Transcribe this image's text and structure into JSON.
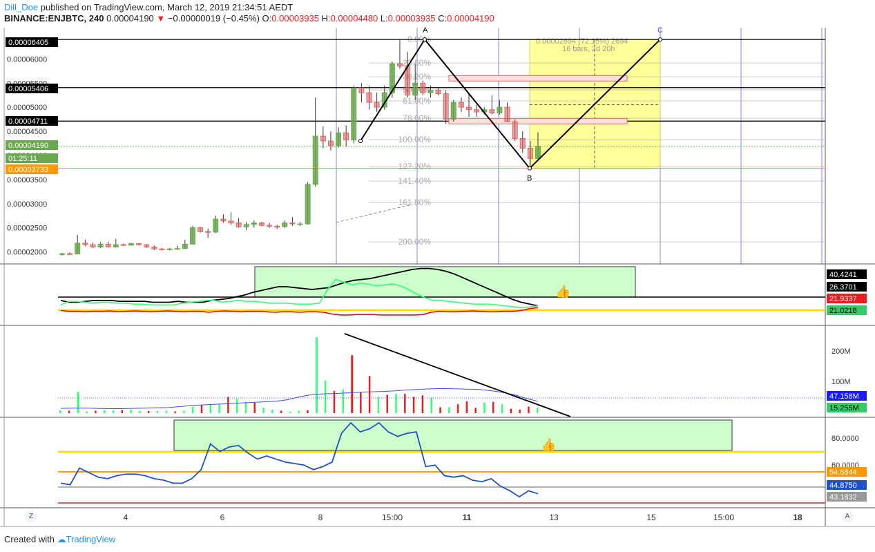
{
  "header": {
    "author": "Dill_Doe",
    "published": "published on TradingView.com, March 12, 2019 21:34:51 AEDT",
    "symbol": "BINANCE:ENJBTC, 240",
    "last": "0.00004190",
    "change": "−0.00000019 (−0.45%)",
    "o_label": "O:",
    "o_value": "0.00003935",
    "h_label": "H:",
    "h_value": "0.00004480",
    "l_label": "L:",
    "l_value": "0.00003935",
    "c_label": "C:",
    "c_value": "0.00004190"
  },
  "footer": {
    "created_with": "Created with",
    "brand": "TradingView"
  },
  "buttons": {
    "zoom": "Z",
    "auto": "A"
  },
  "colors": {
    "up": "#6aa84f",
    "down": "#e06666",
    "grid_v": "#3f51e5",
    "fib": "#9e9e9e",
    "zone": "#ffff99",
    "green_box": "#ccffcc",
    "yellow_line": "#ffd600",
    "orange_line": "#ff9800"
  },
  "chart_data": [
    {
      "type": "candlestick",
      "title": "BINANCE:ENJBTC, 240",
      "ylim": [
        1.75e-05,
        6.65e-05
      ],
      "x_ticks": [
        "4",
        "6",
        "8",
        "15:00",
        "11",
        "13",
        "15",
        "15:00",
        "18"
      ],
      "y_ticks": [
        "0.00002000",
        "0.00002500",
        "0.00003000",
        "0.00003500",
        "0.00004000",
        "0.00004500",
        "0.00005000",
        "0.00005500",
        "0.00006000"
      ],
      "price_labels": [
        {
          "text": "0.00006405",
          "style": "black"
        },
        {
          "text": "0.00005406",
          "style": "black"
        },
        {
          "text": "0.00004711",
          "style": "black"
        },
        {
          "text": "0.00004190",
          "style": "green"
        },
        {
          "text": "01:25:11",
          "style": "green"
        },
        {
          "text": "0.00003733",
          "style": "orange"
        }
      ],
      "fib_levels": [
        "0.00%",
        "23.60%",
        "38.20%",
        "50.00%",
        "61.80%",
        "78.60%",
        "100.00%",
        "127.20%",
        "141.40%",
        "161.80%",
        "200.00%"
      ],
      "measure_text": [
        "0.00002694 (72.15%) 2694",
        "16 bars, 2d 20h"
      ],
      "pattern_points": [
        "A",
        "B",
        "C"
      ],
      "candles": [
        {
          "o": 1.95e-05,
          "h": 1.98e-05,
          "l": 1.92e-05,
          "c": 1.96e-05
        },
        {
          "o": 1.96e-05,
          "h": 1.99e-05,
          "l": 1.94e-05,
          "c": 1.955e-05
        },
        {
          "o": 1.955e-05,
          "h": 2.35e-05,
          "l": 1.95e-05,
          "c": 2.18e-05
        },
        {
          "o": 2.18e-05,
          "h": 2.25e-05,
          "l": 2.12e-05,
          "c": 2.15e-05
        },
        {
          "o": 2.15e-05,
          "h": 2.19e-05,
          "l": 2.08e-05,
          "c": 2.1e-05
        },
        {
          "o": 2.1e-05,
          "h": 2.2e-05,
          "l": 2.08e-05,
          "c": 2.16e-05
        },
        {
          "o": 2.16e-05,
          "h": 2.21e-05,
          "l": 2.09e-05,
          "c": 2.1e-05
        },
        {
          "o": 2.1e-05,
          "h": 2.27e-05,
          "l": 2.09e-05,
          "c": 2.15e-05
        },
        {
          "o": 2.15e-05,
          "h": 2.17e-05,
          "l": 2.12e-05,
          "c": 2.14e-05
        },
        {
          "o": 2.14e-05,
          "h": 2.19e-05,
          "l": 2.13e-05,
          "c": 2.17e-05
        },
        {
          "o": 2.17e-05,
          "h": 2.18e-05,
          "l": 2.13e-05,
          "c": 2.15e-05
        },
        {
          "o": 2.15e-05,
          "h": 2.16e-05,
          "l": 2.08e-05,
          "c": 2.1e-05
        },
        {
          "o": 2.1e-05,
          "h": 2.13e-05,
          "l": 2.04e-05,
          "c": 2.06e-05
        },
        {
          "o": 2.06e-05,
          "h": 2.08e-05,
          "l": 2.03e-05,
          "c": 2.05e-05
        },
        {
          "o": 2.05e-05,
          "h": 2.08e-05,
          "l": 2.03e-05,
          "c": 2.06e-05
        },
        {
          "o": 2.06e-05,
          "h": 2.13e-05,
          "l": 2.04e-05,
          "c": 2.07e-05
        },
        {
          "o": 2.07e-05,
          "h": 2.25e-05,
          "l": 2.06e-05,
          "c": 2.16e-05
        },
        {
          "o": 2.16e-05,
          "h": 2.54e-05,
          "l": 2.15e-05,
          "c": 2.5e-05
        },
        {
          "o": 2.5e-05,
          "h": 2.52e-05,
          "l": 2.4e-05,
          "c": 2.42e-05
        },
        {
          "o": 2.42e-05,
          "h": 2.48e-05,
          "l": 2.29e-05,
          "c": 2.41e-05
        },
        {
          "o": 2.41e-05,
          "h": 2.75e-05,
          "l": 2.39e-05,
          "c": 2.68e-05
        },
        {
          "o": 2.68e-05,
          "h": 2.78e-05,
          "l": 2.6e-05,
          "c": 2.64e-05
        },
        {
          "o": 2.64e-05,
          "h": 2.82e-05,
          "l": 2.56e-05,
          "c": 2.6e-05
        },
        {
          "o": 2.6e-05,
          "h": 2.7e-05,
          "l": 2.5e-05,
          "c": 2.52e-05
        },
        {
          "o": 2.52e-05,
          "h": 2.62e-05,
          "l": 2.45e-05,
          "c": 2.57e-05
        },
        {
          "o": 2.57e-05,
          "h": 2.65e-05,
          "l": 2.5e-05,
          "c": 2.6e-05
        },
        {
          "o": 2.6e-05,
          "h": 2.62e-05,
          "l": 2.53e-05,
          "c": 2.55e-05
        },
        {
          "o": 2.55e-05,
          "h": 2.6e-05,
          "l": 2.5e-05,
          "c": 2.53e-05
        },
        {
          "o": 2.53e-05,
          "h": 2.56e-05,
          "l": 2.47e-05,
          "c": 2.52e-05
        },
        {
          "o": 2.52e-05,
          "h": 2.65e-05,
          "l": 2.5e-05,
          "c": 2.6e-05
        },
        {
          "o": 2.6e-05,
          "h": 2.72e-05,
          "l": 2.54e-05,
          "c": 2.58e-05
        },
        {
          "o": 2.58e-05,
          "h": 2.62e-05,
          "l": 2.54e-05,
          "c": 2.58e-05
        },
        {
          "o": 2.58e-05,
          "h": 3.45e-05,
          "l": 2.56e-05,
          "c": 3.4e-05
        },
        {
          "o": 3.4e-05,
          "h": 5.2e-05,
          "l": 3.35e-05,
          "c": 4.4e-05
        },
        {
          "o": 4.4e-05,
          "h": 4.6e-05,
          "l": 4.15e-05,
          "c": 4.3e-05
        },
        {
          "o": 4.3e-05,
          "h": 4.5e-05,
          "l": 4.1e-05,
          "c": 4.2e-05
        },
        {
          "o": 4.2e-05,
          "h": 4.58e-05,
          "l": 4.16e-05,
          "c": 4.47e-05
        },
        {
          "o": 4.47e-05,
          "h": 4.62e-05,
          "l": 4.18e-05,
          "c": 4.32e-05
        },
        {
          "o": 4.32e-05,
          "h": 5.45e-05,
          "l": 4.25e-05,
          "c": 5.4e-05
        },
        {
          "o": 5.4e-05,
          "h": 5.5e-05,
          "l": 5.1e-05,
          "c": 5.3e-05
        },
        {
          "o": 5.3e-05,
          "h": 5.45e-05,
          "l": 4.95e-05,
          "c": 5.1e-05
        },
        {
          "o": 5.1e-05,
          "h": 5.3e-05,
          "l": 4.9e-05,
          "c": 5e-05
        },
        {
          "o": 5e-05,
          "h": 5.45e-05,
          "l": 4.95e-05,
          "c": 5.3e-05
        },
        {
          "o": 5.3e-05,
          "h": 5.95e-05,
          "l": 5.2e-05,
          "c": 5.9e-05
        },
        {
          "o": 5.9e-05,
          "h": 6.405e-05,
          "l": 5.8e-05,
          "c": 5.85e-05
        },
        {
          "o": 5.85e-05,
          "h": 6.15e-05,
          "l": 5.2e-05,
          "c": 5.25e-05
        },
        {
          "o": 5.25e-05,
          "h": 5.9e-05,
          "l": 5.15e-05,
          "c": 5.5e-05
        },
        {
          "o": 5.5e-05,
          "h": 5.55e-05,
          "l": 5.25e-05,
          "c": 5.3e-05
        },
        {
          "o": 5.3e-05,
          "h": 5.45e-05,
          "l": 5.2e-05,
          "c": 5.35e-05
        },
        {
          "o": 5.35e-05,
          "h": 5.42e-05,
          "l": 5.25e-05,
          "c": 5.28e-05
        },
        {
          "o": 5.28e-05,
          "h": 5.35e-05,
          "l": 4.65e-05,
          "c": 4.75e-05
        },
        {
          "o": 4.75e-05,
          "h": 5.15e-05,
          "l": 4.7e-05,
          "c": 5.1e-05
        },
        {
          "o": 5.1e-05,
          "h": 5.2e-05,
          "l": 4.9e-05,
          "c": 5e-05
        },
        {
          "o": 5e-05,
          "h": 5.3e-05,
          "l": 4.8e-05,
          "c": 4.95e-05
        },
        {
          "o": 4.95e-05,
          "h": 5.05e-05,
          "l": 4.8e-05,
          "c": 4.9e-05
        },
        {
          "o": 4.9e-05,
          "h": 5e-05,
          "l": 4.85e-05,
          "c": 4.95e-05
        },
        {
          "o": 4.95e-05,
          "h": 5.25e-05,
          "l": 4.85e-05,
          "c": 4.88e-05
        },
        {
          "o": 4.88e-05,
          "h": 5.15e-05,
          "l": 4.85e-05,
          "c": 5e-05
        },
        {
          "o": 5e-05,
          "h": 5.1e-05,
          "l": 4.7e-05,
          "c": 4.7e-05
        },
        {
          "o": 4.7e-05,
          "h": 4.75e-05,
          "l": 4.3e-05,
          "c": 4.35e-05
        },
        {
          "o": 4.35e-05,
          "h": 4.5e-05,
          "l": 4.05e-05,
          "c": 4.15e-05
        },
        {
          "o": 4.15e-05,
          "h": 4.3e-05,
          "l": 3.733e-05,
          "c": 3.935e-05
        },
        {
          "o": 3.935e-05,
          "h": 4.48e-05,
          "l": 3.935e-05,
          "c": 4.19e-05
        }
      ]
    },
    {
      "type": "line",
      "title": "",
      "y_labels": [
        "40.4241",
        "26.3701",
        "21.9337",
        "21.0218"
      ],
      "series": [
        {
          "color": "#000000",
          "values": [
            13,
            11,
            11,
            12,
            13,
            13,
            13,
            12,
            12,
            12,
            12,
            11,
            11,
            11,
            12,
            11,
            11,
            11,
            13,
            14,
            15,
            17,
            19,
            22,
            24,
            26,
            28,
            28,
            27,
            26,
            25,
            26,
            27,
            30,
            33,
            35,
            36,
            37,
            39,
            41,
            43,
            45,
            47,
            48,
            48,
            47,
            45,
            42,
            38,
            34,
            30,
            26,
            22,
            18,
            14,
            11,
            9,
            7
          ]
        },
        {
          "color": "#33ff77",
          "values": [
            8,
            12,
            12,
            11,
            10,
            11,
            11,
            10,
            10,
            9,
            9,
            8,
            8,
            8,
            8,
            10,
            11,
            12,
            13,
            13,
            11,
            12,
            13,
            12,
            12,
            11,
            10,
            10,
            10,
            9,
            9,
            9,
            10,
            25,
            36,
            33,
            30,
            32,
            31,
            29,
            30,
            31,
            29,
            25,
            20,
            16,
            13,
            13,
            12,
            11,
            10,
            9,
            9,
            9,
            8,
            7,
            6,
            5,
            6,
            7
          ]
        },
        {
          "color": "#ff0000",
          "values": [
            2,
            1,
            1,
            0.5,
            1,
            1,
            1.5,
            0.5,
            1,
            1.5,
            1,
            0.5,
            1,
            1.5,
            1,
            0.5,
            1,
            1,
            0,
            1,
            1.5,
            1,
            0.5,
            1,
            1,
            0.5,
            0,
            0.5,
            0.5,
            0,
            0.5,
            0.5,
            0,
            -2,
            -3,
            -3,
            -2.5,
            -2.5,
            -2.5,
            -3,
            -3,
            -3,
            -3,
            -3,
            -2.5,
            0,
            1,
            0.5,
            0.5,
            1,
            1.5,
            1,
            0.5,
            0.5,
            1,
            1,
            2,
            4,
            5
          ]
        }
      ]
    },
    {
      "type": "bar",
      "title": "",
      "y_labels": [
        "200M",
        "100M",
        "47.158M",
        "15.255M"
      ],
      "ylim": [
        0,
        270
      ],
      "values": [
        10,
        8,
        72,
        6,
        8,
        10,
        9,
        11,
        12,
        8,
        7,
        7,
        9,
        6,
        8,
        22,
        28,
        29,
        30,
        55,
        48,
        38,
        35,
        18,
        12,
        8,
        5,
        8,
        10,
        255,
        110,
        75,
        80,
        195,
        70,
        125,
        55,
        62,
        65,
        65,
        55,
        60,
        52,
        20,
        20,
        30,
        40,
        18,
        36,
        38,
        30,
        15,
        12,
        22,
        18
      ]
    },
    {
      "type": "line",
      "title": "",
      "y_labels": [
        "80.0000",
        "60.0000",
        "54.6844",
        "44.8750",
        "43.1832"
      ],
      "values": [
        52,
        51,
        62,
        59,
        56,
        55,
        57,
        58,
        58,
        57,
        55,
        54,
        52,
        52,
        55,
        61,
        78,
        73,
        76,
        77,
        72,
        68,
        70,
        68,
        66,
        65,
        64,
        61,
        63,
        66,
        85,
        92,
        86,
        88,
        92,
        86,
        83,
        85,
        86,
        63,
        64,
        57,
        56,
        57,
        54,
        53,
        55,
        50,
        47,
        43,
        47,
        45
      ]
    }
  ]
}
